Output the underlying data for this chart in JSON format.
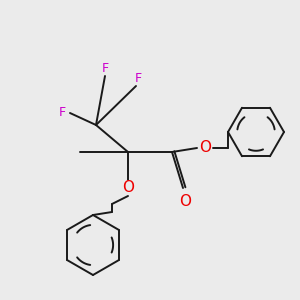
{
  "bg_color": "#ebebeb",
  "bond_color": "#1a1a1a",
  "oxygen_color": "#ee0000",
  "fluorine_color": "#cc00cc",
  "line_width": 1.4,
  "figsize": [
    3.0,
    3.0
  ],
  "dpi": 100,
  "xlim": [
    0,
    300
  ],
  "ylim": [
    0,
    300
  ]
}
